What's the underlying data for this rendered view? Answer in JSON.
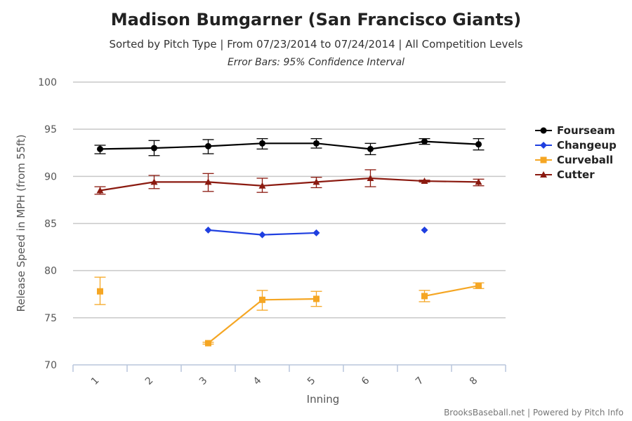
{
  "chart_data": {
    "type": "line",
    "title": "Madison Bumgarner (San Francisco Giants)",
    "subtitle": "Sorted by Pitch Type | From 07/23/2014 to 07/24/2014 | All Competition Levels",
    "subtitle2": "Error Bars: 95% Confidence Interval",
    "xlabel": "Inning",
    "ylabel": "Release Speed in MPH (from 55ft)",
    "categories": [
      "1",
      "2",
      "3",
      "4",
      "5",
      "6",
      "7",
      "8"
    ],
    "ylim": [
      70,
      100
    ],
    "yticks": [
      70,
      75,
      80,
      85,
      90,
      95,
      100
    ],
    "grid": true,
    "legend_position": "right",
    "credit": "BrooksBaseball.net | Powered by Pitch Info",
    "series": [
      {
        "name": "Fourseam",
        "color": "#000000",
        "marker": "circle",
        "values": [
          92.9,
          93.0,
          93.2,
          93.5,
          93.5,
          92.9,
          93.7,
          93.4
        ],
        "err_low": [
          92.4,
          92.2,
          92.4,
          92.9,
          93.0,
          92.3,
          93.4,
          92.8
        ],
        "err_high": [
          93.3,
          93.8,
          93.9,
          94.0,
          94.0,
          93.5,
          94.0,
          94.0
        ]
      },
      {
        "name": "Changeup",
        "color": "#1f3fe0",
        "marker": "diamond",
        "values": [
          null,
          null,
          84.3,
          83.8,
          84.0,
          null,
          84.3,
          null
        ],
        "err_low": [
          null,
          null,
          null,
          null,
          null,
          null,
          null,
          null
        ],
        "err_high": [
          null,
          null,
          null,
          null,
          null,
          null,
          null,
          null
        ]
      },
      {
        "name": "Curveball",
        "color": "#f5a623",
        "marker": "square",
        "values": [
          77.8,
          null,
          72.3,
          76.9,
          77.0,
          null,
          77.3,
          78.4
        ],
        "err_low": [
          76.4,
          null,
          72.2,
          75.8,
          76.2,
          null,
          76.7,
          78.1
        ],
        "err_high": [
          79.3,
          null,
          72.4,
          77.9,
          77.8,
          null,
          77.9,
          78.7
        ]
      },
      {
        "name": "Cutter",
        "color": "#8b1a10",
        "marker": "triangle",
        "values": [
          88.5,
          89.4,
          89.4,
          89.0,
          89.4,
          89.8,
          89.5,
          89.4
        ],
        "err_low": [
          88.1,
          88.7,
          88.4,
          88.3,
          88.8,
          88.9,
          89.4,
          89.0
        ],
        "err_high": [
          88.9,
          90.1,
          90.3,
          89.8,
          89.9,
          90.7,
          89.6,
          89.7
        ]
      }
    ]
  }
}
